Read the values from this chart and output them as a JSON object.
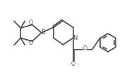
{
  "bg_color": "#ffffff",
  "line_color": "#4a4a4a",
  "lw": 1.2,
  "figsize": [
    1.9,
    1.03
  ],
  "dpi": 100,
  "xlim": [
    0,
    10
  ],
  "ylim": [
    0,
    5.4
  ]
}
